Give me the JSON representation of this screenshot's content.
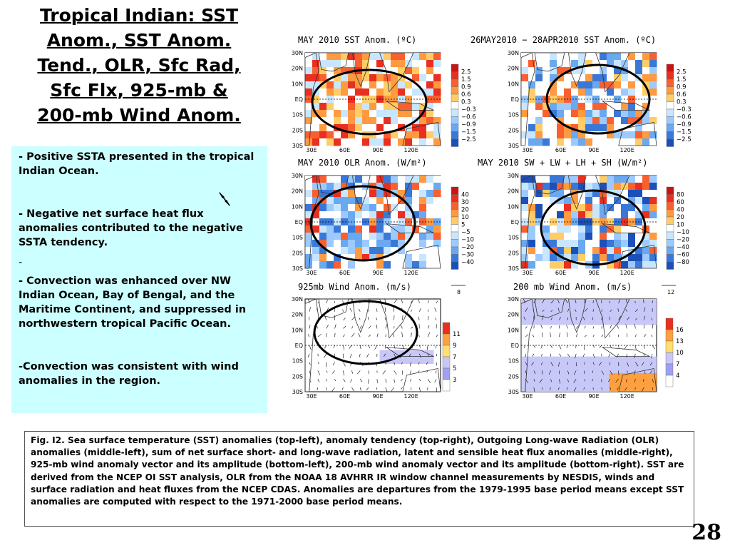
{
  "title_lines": [
    "Tropical Indian: SST",
    "Anom., SST Anom.",
    "Tend., OLR, Sfc Rad,",
    "Sfc Flx, 925-mb &",
    "200-mb Wind Anom."
  ],
  "bullets": {
    "b1": "- Positive SSTA presented in the tropical Indian Ocean.",
    "b2": "- Negative net surface heat flux anomalies contributed to the negative SSTA tendency.",
    "b3": "-",
    "b4": "- Convection was enhanced over NW Indian Ocean, Bay of Bengal, and the Maritime Continent, and suppressed in northwestern tropical Pacific Ocean.",
    "b5": "-Convection was consistent with wind anomalies in the region."
  },
  "panels": {
    "sst": {
      "title": "MAY 2010 SST Anom. (ºC)",
      "legend": [
        "2.5",
        "1.5",
        "0.9",
        "0.6",
        "0.3",
        "−0.3",
        "−0.6",
        "−0.9",
        "−1.5",
        "−2.5"
      ],
      "colors": [
        "#c81414",
        "#e83020",
        "#f86030",
        "#ff9a40",
        "#ffcc66",
        "#ffffff",
        "#c8e6ff",
        "#9ccaff",
        "#6aa8f0",
        "#3a78d8",
        "#1c50b8"
      ]
    },
    "tend": {
      "title": "26MAY2010 − 28APR2010 SST Anom. (ºC)",
      "legend": [
        "2.5",
        "1.5",
        "0.9",
        "0.6",
        "0.3",
        "−0.3",
        "−0.6",
        "−0.9",
        "−1.5",
        "−2.5"
      ],
      "colors": [
        "#c81414",
        "#e83020",
        "#f86030",
        "#ff9a40",
        "#ffcc66",
        "#ffffff",
        "#c8e6ff",
        "#9ccaff",
        "#6aa8f0",
        "#3a78d8",
        "#1c50b8"
      ]
    },
    "olr": {
      "title": "MAY 2010 OLR Anom. (W/m²)",
      "legend": [
        "40",
        "30",
        "20",
        "10",
        "5",
        "−5",
        "−10",
        "−20",
        "−30",
        "−40"
      ],
      "colors": [
        "#c81414",
        "#e83020",
        "#f86030",
        "#ff9a40",
        "#ffcc66",
        "#ffffff",
        "#c8e6ff",
        "#9ccaff",
        "#6aa8f0",
        "#3a78d8",
        "#1c50b8"
      ]
    },
    "flux": {
      "title": "MAY 2010 SW + LW + LH + SH (W/m²)",
      "legend": [
        "80",
        "60",
        "40",
        "20",
        "10",
        "−10",
        "−20",
        "−40",
        "−60",
        "−80"
      ],
      "colors": [
        "#c81414",
        "#e83020",
        "#f86030",
        "#ff9a40",
        "#ffcc66",
        "#ffffff",
        "#c8e6ff",
        "#9ccaff",
        "#6aa8f0",
        "#3a78d8",
        "#1c50b8"
      ]
    },
    "w925": {
      "title": "925mb Wind Anom. (m/s)",
      "ref": "8",
      "legend": [
        "11",
        "9",
        "7",
        "5",
        "3"
      ],
      "colors": [
        "#e83020",
        "#ffa040",
        "#ffe070",
        "#c8c8f8",
        "#a0a0f0",
        "#ffffff"
      ]
    },
    "w200": {
      "title": "200 mb Wind Anom. (m/s)",
      "ref": "12",
      "legend": [
        "16",
        "13",
        "10",
        "7",
        "4"
      ],
      "colors": [
        "#e83020",
        "#ffa040",
        "#ffe070",
        "#c8c8f8",
        "#a0a0f0",
        "#ffffff"
      ]
    }
  },
  "lat_labels": [
    "30N",
    "20N",
    "10N",
    "EQ",
    "10S",
    "20S",
    "30S"
  ],
  "lon_labels": [
    "30E",
    "60E",
    "90E",
    "120E"
  ],
  "caption": "Fig. I2. Sea surface temperature (SST) anomalies (top-left), anomaly tendency (top-right), Outgoing Long-wave Radiation (OLR) anomalies (middle-left), sum of net surface short- and long-wave radiation, latent and sensible heat flux anomalies (middle-right), 925-mb wind anomaly vector and its amplitude (bottom-left), 200-mb wind anomaly vector and its amplitude  (bottom-right). SST are derived from the NCEP OI SST analysis, OLR from the NOAA 18 AVHRR IR window channel measurements by NESDIS, winds and surface radiation and heat fluxes from the NCEP CDAS. Anomalies are  departures from the 1979-1995 base period means except SST anomalies are computed with respect to the 1971-2000 base period means.",
  "page_number": "28"
}
